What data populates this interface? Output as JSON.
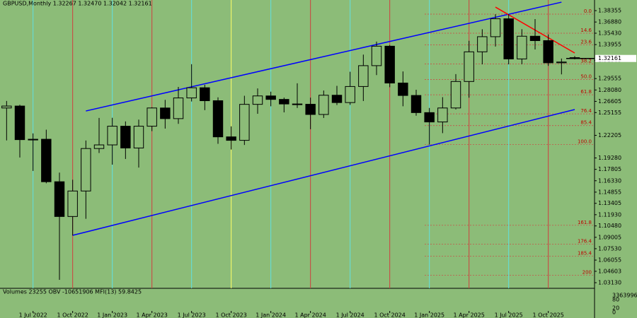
{
  "chart_data": {
    "type": "candlestick",
    "title": "GBPUSD,Monthly  1.32267 1.32470 1.32042 1.32161",
    "open": [
      1.2575,
      1.26,
      1.2165,
      1.217,
      1.162,
      1.117,
      1.15,
      1.205,
      1.2097,
      1.2339,
      1.2057,
      1.2339,
      1.2575,
      1.2437,
      1.2705,
      1.2837,
      1.2669,
      1.2201,
      1.2156,
      1.2622,
      1.2731,
      1.2686,
      1.2627,
      1.2623,
      1.2491,
      1.274,
      1.2645,
      1.2853,
      1.3123,
      1.3375,
      1.2898,
      1.2737,
      1.2515,
      1.2394,
      1.2575,
      1.2918,
      1.3302,
      1.3498,
      1.373,
      1.321,
      1.3504,
      1.3447,
      1.316,
      1.32267
    ],
    "high": [
      1.2666,
      1.2617,
      1.2246,
      1.2294,
      1.1738,
      1.1646,
      1.2154,
      1.2446,
      1.2448,
      1.2401,
      1.2424,
      1.2584,
      1.268,
      1.2848,
      1.3142,
      1.2875,
      1.2713,
      1.2337,
      1.2733,
      1.2828,
      1.2786,
      1.2709,
      1.2894,
      1.2709,
      1.2801,
      1.2861,
      1.3044,
      1.3266,
      1.3434,
      1.339,
      1.3048,
      1.2811,
      1.2575,
      1.2715,
      1.3014,
      1.3445,
      1.3594,
      1.3789,
      1.3789,
      1.3595,
      1.3726,
      1.3527,
      1.3215,
      1.3247
    ],
    "low": [
      1.2155,
      1.1934,
      1.176,
      1.16,
      1.035,
      1.0924,
      1.114,
      1.1992,
      1.1841,
      1.1915,
      1.1803,
      1.2275,
      1.2308,
      1.2369,
      1.2659,
      1.2547,
      1.2111,
      1.2037,
      1.2096,
      1.25,
      1.2597,
      1.2518,
      1.2575,
      1.23,
      1.2446,
      1.2613,
      1.2615,
      1.2665,
      1.3001,
      1.2844,
      1.2597,
      1.2475,
      1.21,
      1.2249,
      1.2556,
      1.2708,
      1.314,
      1.337,
      1.314,
      1.3142,
      1.3333,
      1.312,
      1.301,
      1.32042
    ],
    "close": [
      1.26,
      1.2165,
      1.217,
      1.162,
      1.117,
      1.15,
      1.205,
      1.2097,
      1.2339,
      1.2057,
      1.2339,
      1.2575,
      1.2437,
      1.2705,
      1.2837,
      1.2669,
      1.2201,
      1.2156,
      1.2622,
      1.2731,
      1.2686,
      1.2627,
      1.2623,
      1.2491,
      1.274,
      1.2645,
      1.2853,
      1.3123,
      1.3375,
      1.2898,
      1.2737,
      1.2515,
      1.2394,
      1.2575,
      1.2918,
      1.3302,
      1.3498,
      1.373,
      1.321,
      1.3504,
      1.3447,
      1.316,
      1.317,
      1.32161
    ],
    "up_color": "#8cbc78",
    "down_color": "#000000",
    "xlim": [
      -0.5,
      44.5
    ],
    "xticks": [
      {
        "value": 2,
        "label": "1 Jul 2022"
      },
      {
        "value": 5,
        "label": "1 Oct 2022"
      },
      {
        "value": 8,
        "label": "1 Jan 2023"
      },
      {
        "value": 11,
        "label": "1 Apr 2023"
      },
      {
        "value": 14,
        "label": "1 Jul 2023"
      },
      {
        "value": 17,
        "label": "1 Oct 2023"
      },
      {
        "value": 20,
        "label": "1 Jan 2024"
      },
      {
        "value": 23,
        "label": "1 Apr 2024"
      },
      {
        "value": 26,
        "label": "1 Jul 2024"
      },
      {
        "value": 29,
        "label": "1 Oct 2024"
      },
      {
        "value": 32,
        "label": "1 Jan 2025"
      },
      {
        "value": 35,
        "label": "1 Apr 2025"
      },
      {
        "value": 38,
        "label": "1 Jul 2025"
      },
      {
        "value": 41,
        "label": "1 Oct 2025"
      }
    ],
    "ylim": [
      1.024,
      1.3973
    ],
    "yticks": [
      1.38355,
      {
        "value": 1.3688,
        "label": "1.36880"
      },
      {
        "value": 1.3543,
        "label": "1.35430"
      },
      1.33955,
      1.31905,
      1.29555,
      {
        "value": 1.2808,
        "label": "1.28080"
      },
      1.26605,
      1.25155,
      1.22205,
      {
        "value": 1.1928,
        "label": "1.19280"
      },
      1.17805,
      {
        "value": 1.1633,
        "label": "1.16330"
      },
      1.14855,
      1.13405,
      {
        "value": 1.1193,
        "label": "1.11930"
      },
      {
        "value": 1.1048,
        "label": "1.10480"
      },
      1.09005,
      {
        "value": 1.0753,
        "label": "1.07530"
      },
      1.06055,
      1.04603,
      {
        "value": 1.0313,
        "label": "1.03130"
      }
    ],
    "fibonacci": [
      {
        "label": "0.0",
        "price": 1.379
      },
      {
        "label": "14.6",
        "price": 1.3543
      },
      {
        "label": "23.6",
        "price": 1.3391
      },
      {
        "label": "38.2",
        "price": 1.3144
      },
      {
        "label": "50.0",
        "price": 1.2945
      },
      {
        "label": "61.8",
        "price": 1.2746
      },
      {
        "label": "76.4",
        "price": 1.2499
      },
      {
        "label": "85.4",
        "price": 1.2347
      },
      {
        "label": "100.0",
        "price": 1.21
      },
      {
        "label": "161.8",
        "price": 1.1056
      },
      {
        "label": "176.4",
        "price": 1.081
      },
      {
        "label": "185.4",
        "price": 1.0658
      },
      {
        "label": "200",
        "price": 1.041
      }
    ],
    "trend_lines": [
      {
        "color": "#0000ff",
        "x": [
          6,
          42
        ],
        "y": [
          1.2536,
          1.3945
        ]
      },
      {
        "color": "#0000ff",
        "x": [
          5,
          43
        ],
        "y": [
          1.0926,
          1.2555
        ]
      },
      {
        "color": "#ff0000",
        "x": [
          37,
          43
        ],
        "y": [
          1.3881,
          1.3287
        ]
      }
    ],
    "indicator": {
      "label": "Volumes 23255  OBV -10651906  MFI(13) 59.8425",
      "yticks": [
        3363996,
        80,
        20,
        0
      ]
    }
  }
}
